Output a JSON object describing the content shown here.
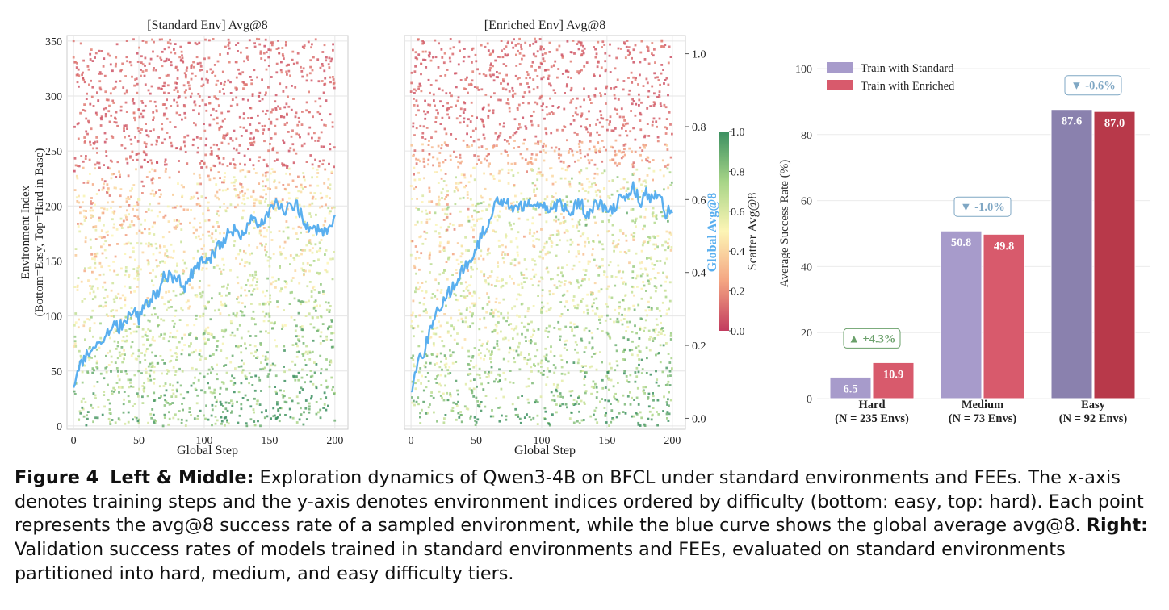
{
  "colors": {
    "curve": "#5aafef",
    "standard_bar": "#a79bcb",
    "enriched_bar": "#d85a6c",
    "standard_bar_easy": "#8a81ae",
    "enriched_bar_easy": "#b8394a",
    "delta_up": "#6aa06a",
    "delta_down": "#7fa7c4",
    "colormap": [
      "#c23b5e",
      "#f4a582",
      "#fdf5b5",
      "#a6d487",
      "#3b8f60"
    ]
  },
  "chart_data": [
    {
      "type": "scatter",
      "title": "[Standard Env] Avg@8",
      "xlabel": "Global Step",
      "ylabel_line1": "Environment Index",
      "ylabel_line2": "(Bottom=Easy, Top=Hard in Base)",
      "xlim": [
        -5,
        210
      ],
      "ylim": [
        -3,
        355
      ],
      "xticks": [
        0,
        50,
        100,
        150,
        200
      ],
      "yticks": [
        0,
        50,
        100,
        150,
        200,
        250,
        300,
        350
      ],
      "grid": true,
      "n_points": 2600,
      "curve_series": {
        "name": "Global Avg@8",
        "secondary_ylim": [
          -0.03,
          1.05
        ],
        "anchors_x": [
          0,
          5,
          10,
          15,
          20,
          25,
          30,
          35,
          40,
          45,
          50,
          55,
          60,
          65,
          70,
          75,
          80,
          85,
          90,
          95,
          100,
          105,
          110,
          115,
          120,
          125,
          130,
          135,
          140,
          145,
          150,
          155,
          160,
          165,
          170,
          175,
          180,
          185,
          190,
          195,
          200
        ],
        "anchors_y": [
          0.1,
          0.15,
          0.17,
          0.2,
          0.22,
          0.23,
          0.25,
          0.25,
          0.27,
          0.3,
          0.27,
          0.31,
          0.33,
          0.35,
          0.4,
          0.38,
          0.39,
          0.35,
          0.4,
          0.41,
          0.44,
          0.44,
          0.47,
          0.48,
          0.52,
          0.51,
          0.5,
          0.55,
          0.53,
          0.54,
          0.57,
          0.59,
          0.57,
          0.58,
          0.59,
          0.55,
          0.52,
          0.52,
          0.52,
          0.51,
          0.56
        ]
      }
    },
    {
      "type": "scatter",
      "title": "[Enriched Env] Avg@8",
      "xlabel": "Global Step",
      "xlim": [
        -5,
        210
      ],
      "ylim": [
        -3,
        355
      ],
      "xticks": [
        0,
        50,
        100,
        150,
        200
      ],
      "y2label": "Global Avg@8",
      "y2lim": [
        -0.03,
        1.05
      ],
      "y2ticks": [
        "0.0",
        "0.2",
        "0.4",
        "0.6",
        "0.8",
        "1.0"
      ],
      "grid": true,
      "n_points": 2600,
      "curve_series": {
        "name": "Global Avg@8",
        "anchors_x": [
          0,
          5,
          10,
          15,
          20,
          25,
          30,
          35,
          40,
          45,
          50,
          55,
          60,
          65,
          70,
          75,
          80,
          85,
          90,
          95,
          100,
          105,
          110,
          115,
          120,
          125,
          130,
          135,
          140,
          145,
          150,
          155,
          160,
          165,
          170,
          175,
          180,
          185,
          190,
          195,
          200
        ],
        "anchors_y": [
          0.07,
          0.16,
          0.18,
          0.25,
          0.3,
          0.32,
          0.35,
          0.38,
          0.41,
          0.43,
          0.46,
          0.51,
          0.53,
          0.6,
          0.6,
          0.59,
          0.58,
          0.58,
          0.59,
          0.57,
          0.6,
          0.56,
          0.58,
          0.59,
          0.56,
          0.58,
          0.59,
          0.55,
          0.58,
          0.59,
          0.56,
          0.58,
          0.6,
          0.6,
          0.64,
          0.59,
          0.62,
          0.6,
          0.62,
          0.56,
          0.58
        ]
      }
    },
    {
      "type": "colorbar",
      "label": "Scatter Avg@8",
      "lim": [
        0,
        1
      ],
      "ticks": [
        "0.0",
        "0.2",
        "0.4",
        "0.6",
        "0.8",
        "1.0"
      ]
    },
    {
      "type": "bar",
      "ylabel": "Average Success Rate (%)",
      "ylim": [
        0,
        100
      ],
      "yticks": [
        "0",
        "20",
        "40",
        "60",
        "80",
        "100"
      ],
      "legend_position": "top-left",
      "categories": [
        {
          "name": "Hard",
          "n": "(N = 235 Envs)"
        },
        {
          "name": "Medium",
          "n": "(N = 73 Envs)"
        },
        {
          "name": "Easy",
          "n": "(N = 92 Envs)"
        }
      ],
      "series": [
        {
          "name": "Train with Standard",
          "values": [
            6.5,
            50.8,
            87.6
          ],
          "labels": [
            "6.5",
            "50.8",
            "87.6"
          ]
        },
        {
          "name": "Train with Enriched",
          "values": [
            10.9,
            49.8,
            87.0
          ],
          "labels": [
            "10.9",
            "49.8",
            "87.0"
          ]
        }
      ],
      "deltas": [
        {
          "text": "▲ +4.3%",
          "direction": "up"
        },
        {
          "text": "▼ -1.0%",
          "direction": "down"
        },
        {
          "text": "▼ -0.6%",
          "direction": "down"
        }
      ]
    }
  ],
  "caption": {
    "label": "Figure 4",
    "part1_label": "Left & Middle:",
    "part1_text": "Exploration dynamics of Qwen3-4B on BFCL under standard environments and FEEs. The x-axis denotes training steps and the y-axis denotes environment indices ordered by difficulty (bottom: easy, top: hard). Each point represents the avg@8 success rate of a sampled environment, while the blue curve shows the global average avg@8.",
    "part2_label": "Right:",
    "part2_text": "Validation success rates of models trained in standard environments and FEEs, evaluated on standard environments partitioned into hard, medium, and easy difficulty tiers."
  }
}
